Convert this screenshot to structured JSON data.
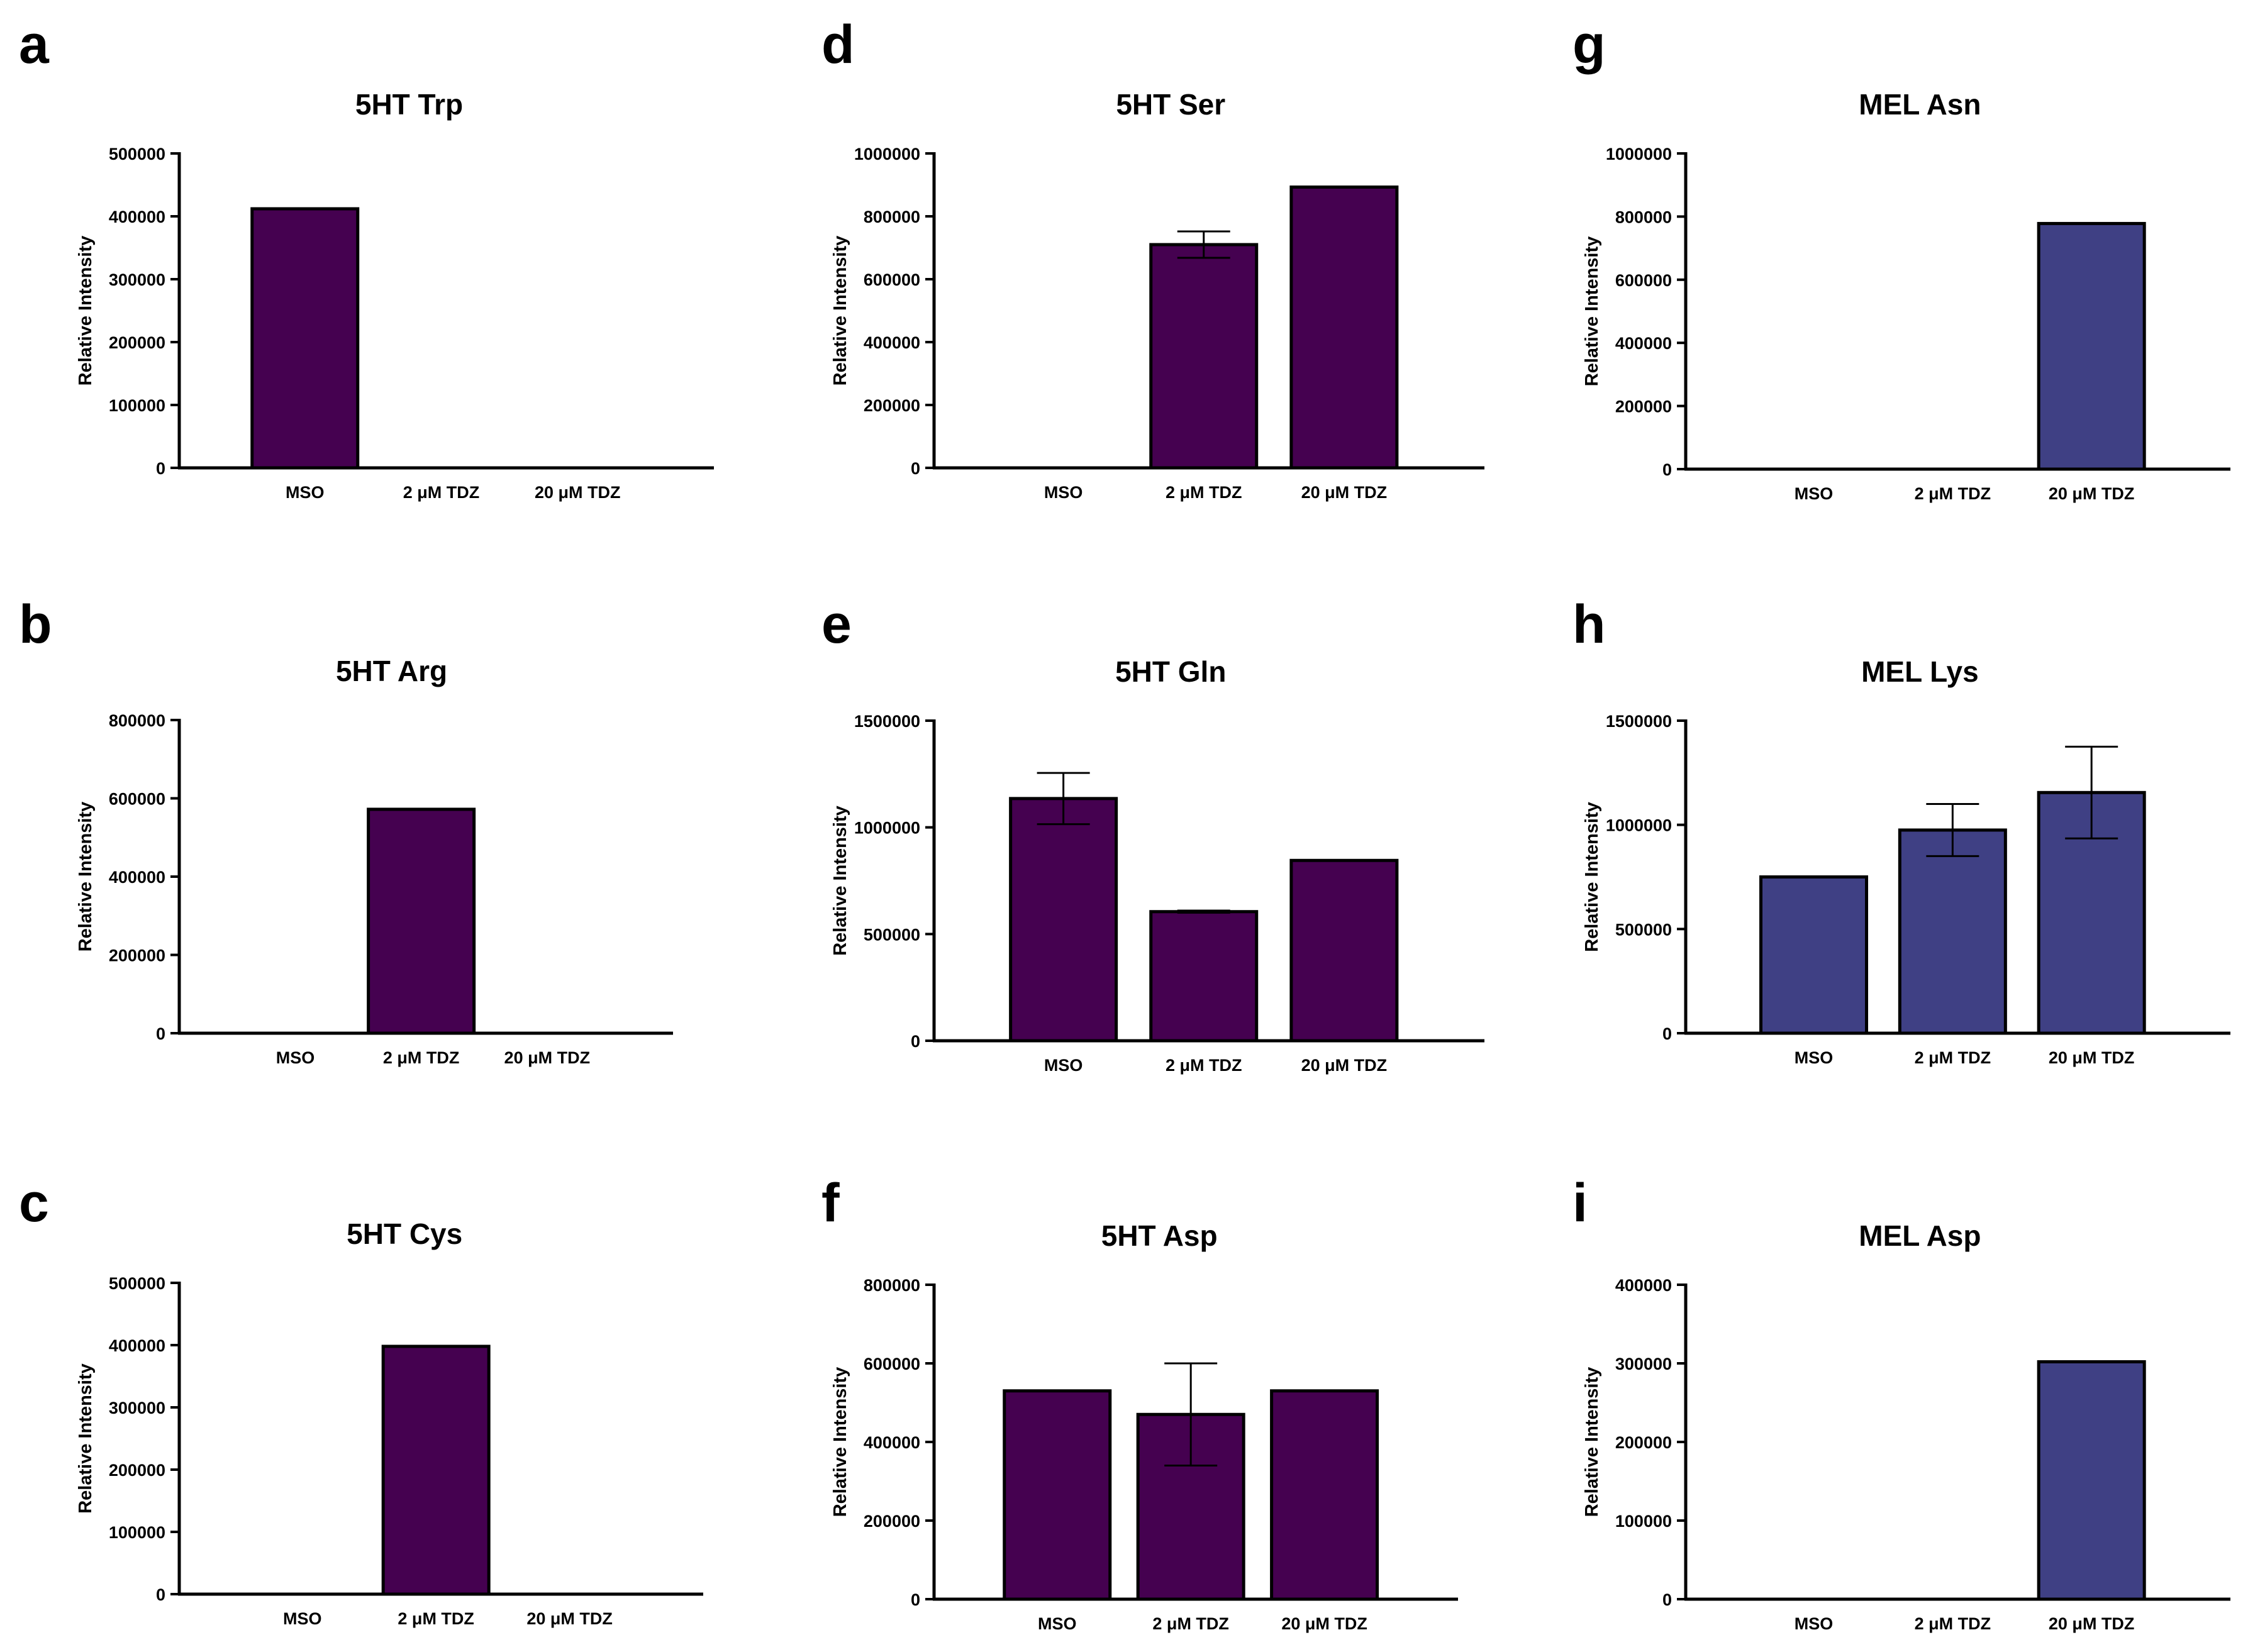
{
  "colors": {
    "purple": "#450150",
    "navy": "#3f4084",
    "axis": "#000000"
  },
  "chart_data": [
    {
      "letter": "a",
      "type": "bar",
      "title": "5HT Trp",
      "ylabel": "Relative Intensity",
      "categories": [
        "MSO",
        "2 μM TDZ",
        "20 μM TDZ"
      ],
      "values": [
        412000,
        0,
        0
      ],
      "errors": [
        0,
        0,
        0
      ],
      "ylim": [
        0,
        500000
      ],
      "yticks": [
        0,
        100000,
        200000,
        300000,
        400000,
        500000
      ],
      "color": "purple"
    },
    {
      "letter": "b",
      "type": "bar",
      "title": "5HT Arg",
      "ylabel": "Relative Intensity",
      "categories": [
        "MSO",
        "2 μM TDZ",
        "20 μM TDZ"
      ],
      "values": [
        0,
        572000,
        0
      ],
      "errors": [
        0,
        0,
        0
      ],
      "ylim": [
        0,
        800000
      ],
      "yticks": [
        0,
        200000,
        400000,
        600000,
        800000
      ],
      "color": "purple"
    },
    {
      "letter": "c",
      "type": "bar",
      "title": "5HT Cys",
      "ylabel": "Relative Intensity",
      "categories": [
        "MSO",
        "2 μM TDZ",
        "20 μM TDZ"
      ],
      "values": [
        0,
        398000,
        0
      ],
      "errors": [
        0,
        0,
        0
      ],
      "ylim": [
        0,
        500000
      ],
      "yticks": [
        0,
        100000,
        200000,
        300000,
        400000,
        500000
      ],
      "color": "purple"
    },
    {
      "letter": "d",
      "type": "bar",
      "title": "5HT Ser",
      "ylabel": "Relative Intensity",
      "categories": [
        "MSO",
        "2 μM TDZ",
        "20 μM TDZ"
      ],
      "values": [
        0,
        710000,
        893000
      ],
      "errors": [
        0,
        42000,
        0
      ],
      "ylim": [
        0,
        1000000
      ],
      "yticks": [
        0,
        200000,
        400000,
        600000,
        800000,
        1000000
      ],
      "color": "purple"
    },
    {
      "letter": "e",
      "type": "bar",
      "title": "5HT Gln",
      "ylabel": "Relative Intensity",
      "categories": [
        "MSO",
        "2 μM TDZ",
        "20 μM TDZ"
      ],
      "values": [
        1135000,
        605000,
        845000
      ],
      "errors": [
        120000,
        5000,
        0
      ],
      "ylim": [
        0,
        1500000
      ],
      "yticks": [
        0,
        500000,
        1000000,
        1500000
      ],
      "color": "purple"
    },
    {
      "letter": "f",
      "type": "bar",
      "title": "5HT Asp",
      "ylabel": "Relative Intensity",
      "categories": [
        "MSO",
        "2 μM TDZ",
        "20 μM TDZ"
      ],
      "values": [
        530000,
        470000,
        530000
      ],
      "errors": [
        0,
        130000,
        0
      ],
      "ylim": [
        0,
        800000
      ],
      "yticks": [
        0,
        200000,
        400000,
        600000,
        800000
      ],
      "color": "purple"
    },
    {
      "letter": "g",
      "type": "bar",
      "title": "MEL Asn",
      "ylabel": "Relative Intensity",
      "categories": [
        "MSO",
        "2 μM TDZ",
        "20 μM TDZ"
      ],
      "values": [
        0,
        0,
        778000
      ],
      "errors": [
        0,
        0,
        0
      ],
      "ylim": [
        0,
        1000000
      ],
      "yticks": [
        0,
        200000,
        400000,
        600000,
        800000,
        1000000
      ],
      "color": "navy"
    },
    {
      "letter": "h",
      "type": "bar",
      "title": "MEL Lys",
      "ylabel": "Relative Intensity",
      "categories": [
        "MSO",
        "2 μM TDZ",
        "20 μM TDZ"
      ],
      "values": [
        750000,
        975000,
        1155000
      ],
      "errors": [
        0,
        125000,
        220000
      ],
      "ylim": [
        0,
        1500000
      ],
      "yticks": [
        0,
        500000,
        1000000,
        1500000
      ],
      "color": "navy"
    },
    {
      "letter": "i",
      "type": "bar",
      "title": "MEL Asp",
      "ylabel": "Relative Intensity",
      "categories": [
        "MSO",
        "2 μM TDZ",
        "20 μM TDZ"
      ],
      "values": [
        0,
        0,
        302000
      ],
      "errors": [
        0,
        0,
        0
      ],
      "ylim": [
        0,
        400000
      ],
      "yticks": [
        0,
        100000,
        200000,
        300000,
        400000
      ],
      "color": "navy"
    }
  ]
}
